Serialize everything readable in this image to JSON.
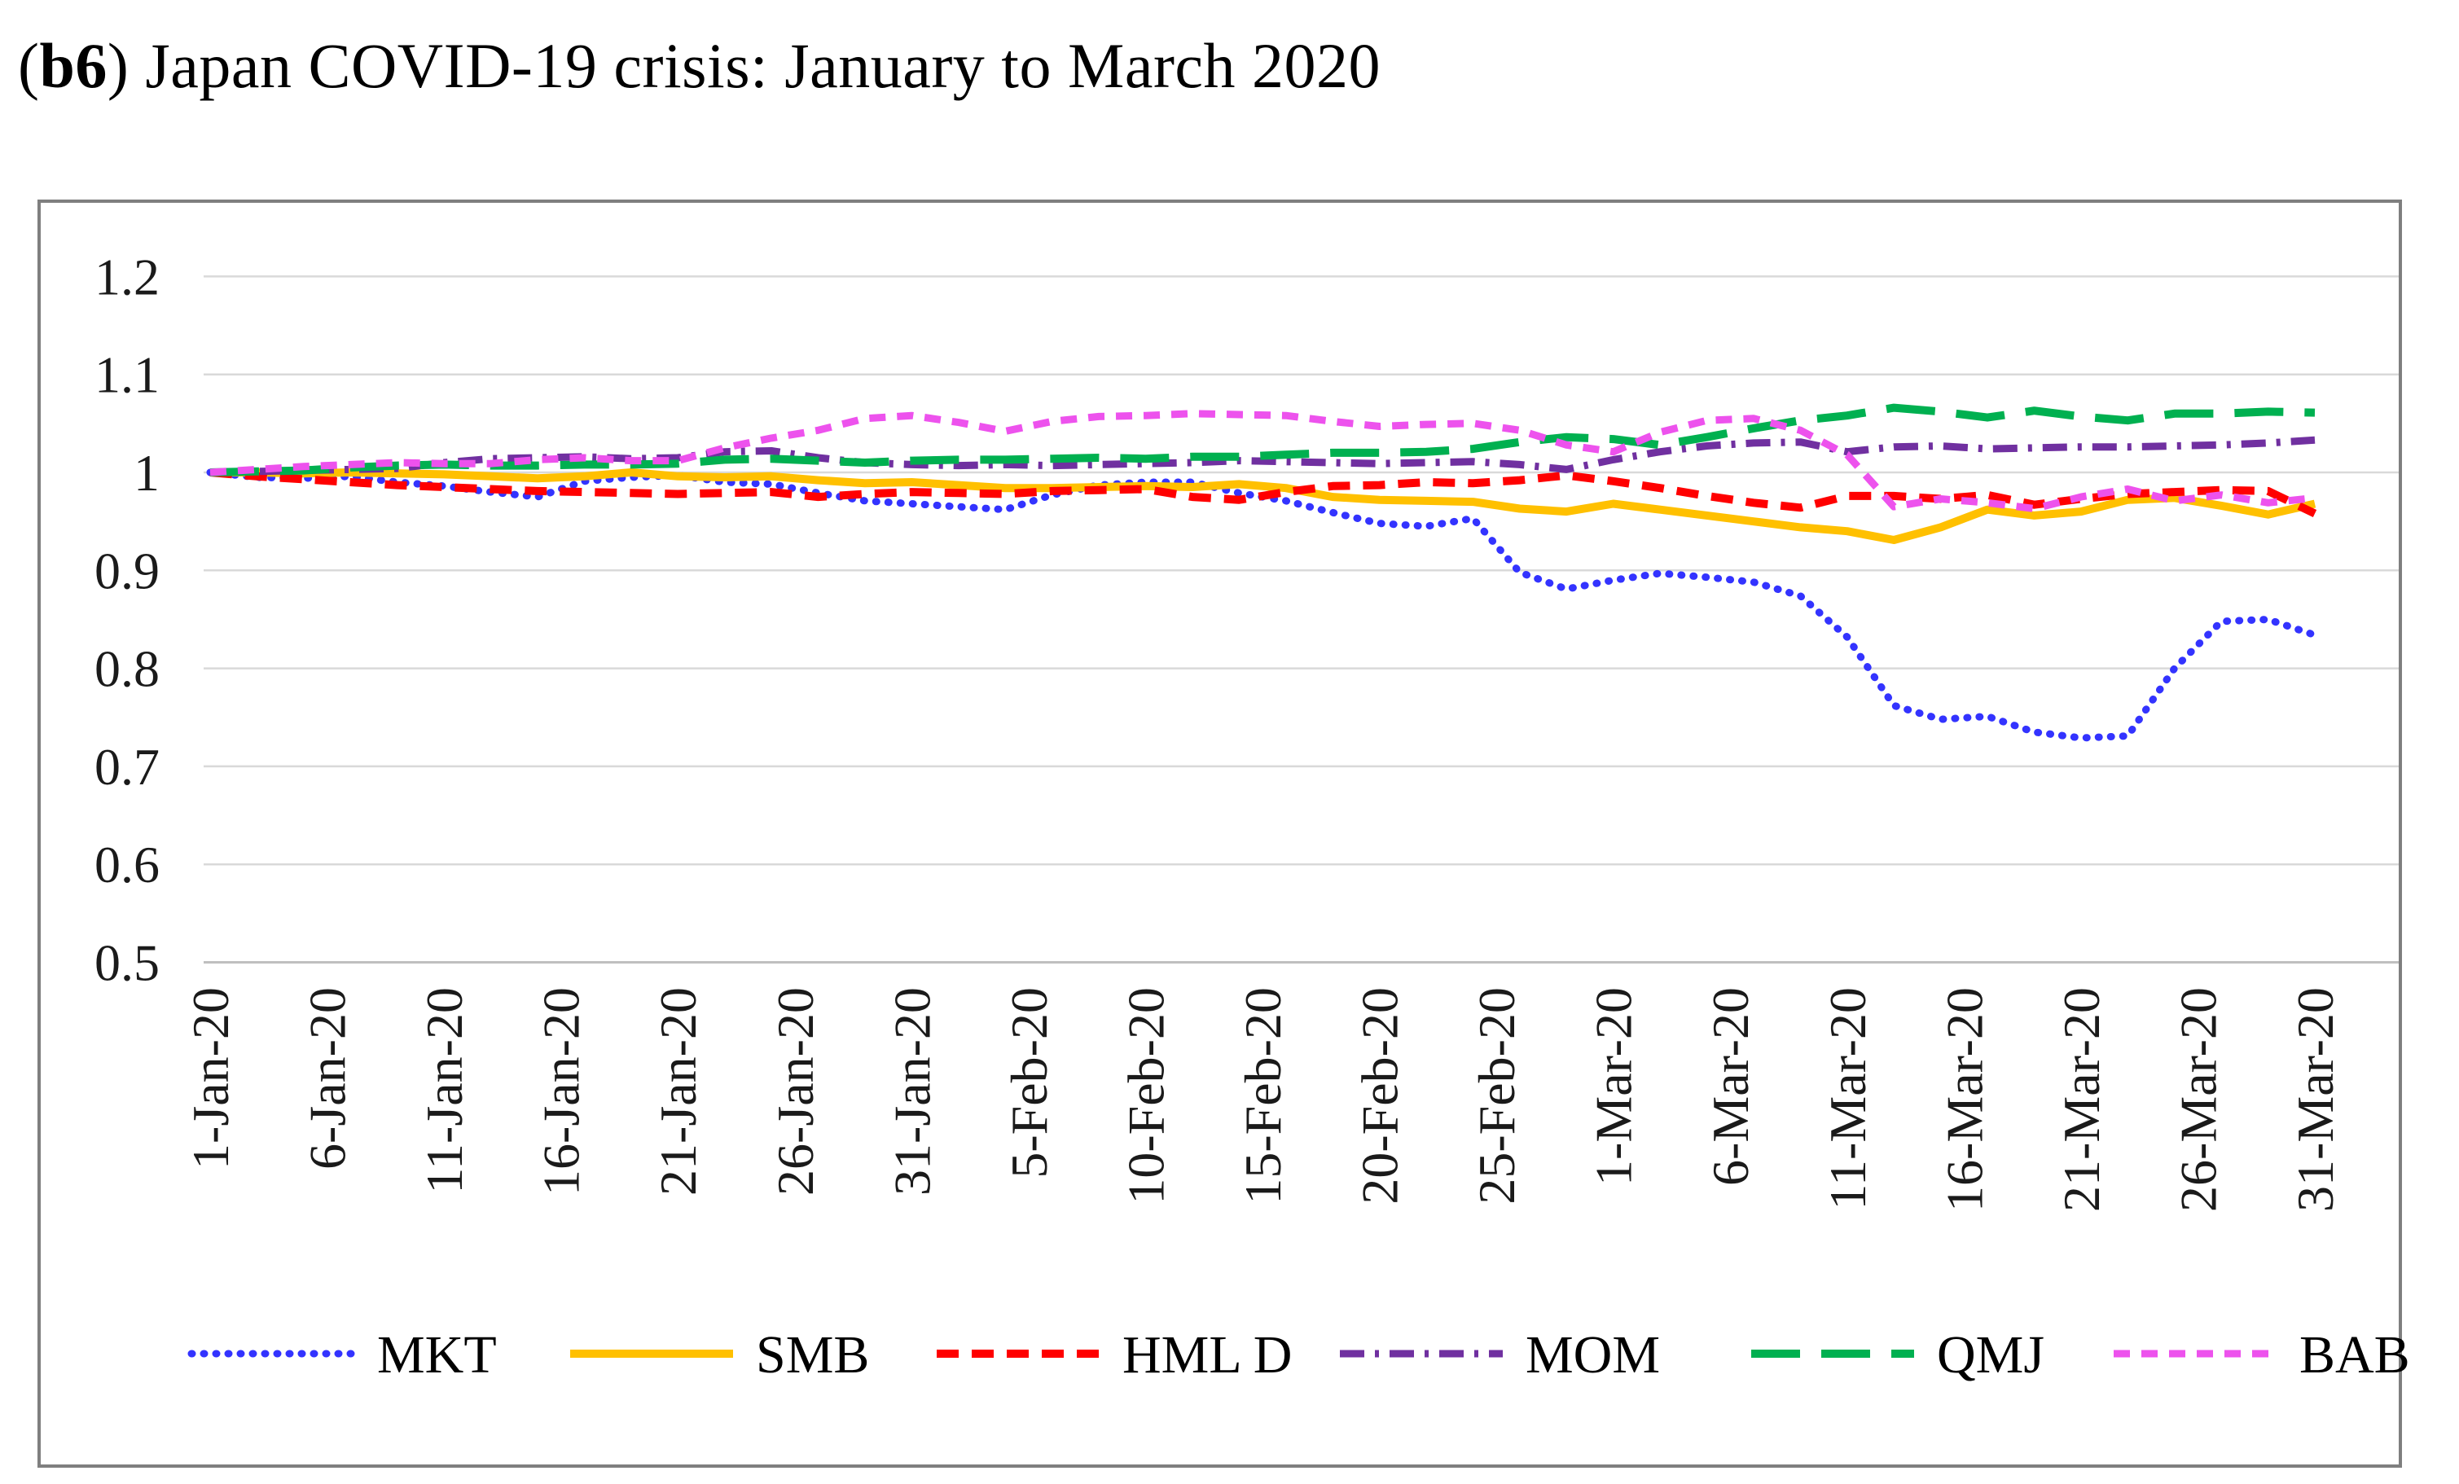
{
  "title": {
    "open": "(",
    "code": "b6",
    "rest": ") Japan COVID-19 crisis: January to March 2020"
  },
  "chart_data": {
    "type": "line",
    "title": "(b6) Japan COVID-19 crisis: January to March 2020",
    "xlabel": "",
    "ylabel": "",
    "ylim": [
      0.5,
      1.2
    ],
    "y_ticks": [
      1.2,
      1.1,
      1,
      0.9,
      0.8,
      0.7,
      0.6,
      0.5
    ],
    "y_tick_labels": [
      "1.2",
      "1.1",
      "1",
      "0.9",
      "0.8",
      "0.7",
      "0.6",
      "0.5"
    ],
    "grid": "horizontal",
    "legend_position": "bottom",
    "x_unit": "days since 1-Jan-2020",
    "x_tick_days": [
      0,
      5,
      10,
      15,
      20,
      25,
      30,
      35,
      40,
      45,
      50,
      55,
      60,
      65,
      70,
      75,
      80,
      85,
      90
    ],
    "x_tick_labels": [
      "1-Jan-20",
      "6-Jan-20",
      "11-Jan-20",
      "16-Jan-20",
      "21-Jan-20",
      "26-Jan-20",
      "31-Jan-20",
      "5-Feb-20",
      "10-Feb-20",
      "15-Feb-20",
      "20-Feb-20",
      "25-Feb-20",
      "1-Mar-20",
      "6-Mar-20",
      "11-Mar-20",
      "16-Mar-20",
      "21-Mar-20",
      "26-Mar-20",
      "31-Mar-20"
    ],
    "sample_days": [
      0,
      2,
      4,
      6,
      8,
      10,
      12,
      14,
      16,
      18,
      20,
      22,
      24,
      26,
      28,
      30,
      32,
      34,
      36,
      38,
      40,
      42,
      44,
      46,
      48,
      50,
      52,
      54,
      56,
      58,
      60,
      62,
      64,
      66,
      68,
      70,
      72,
      74,
      76,
      78,
      80,
      82,
      84,
      86,
      88,
      90
    ],
    "series": [
      {
        "name": "MKT",
        "color": "#3333FF",
        "line_style": "dotted",
        "values": [
          1.0,
          0.995,
          0.994,
          0.996,
          0.99,
          0.986,
          0.98,
          0.975,
          0.991,
          0.995,
          0.997,
          0.99,
          0.988,
          0.979,
          0.971,
          0.968,
          0.965,
          0.962,
          0.977,
          0.987,
          0.99,
          0.99,
          0.979,
          0.971,
          0.959,
          0.948,
          0.945,
          0.953,
          0.898,
          0.881,
          0.89,
          0.897,
          0.893,
          0.888,
          0.874,
          0.832,
          0.762,
          0.748,
          0.751,
          0.735,
          0.729,
          0.731,
          0.8,
          0.848,
          0.85,
          0.834
        ]
      },
      {
        "name": "SMB",
        "color": "#FFC000",
        "line_style": "solid",
        "values": [
          1.0,
          1.0,
          0.999,
          1.0,
          0.999,
          0.998,
          0.996,
          0.994,
          0.996,
          1.0,
          0.996,
          0.995,
          0.996,
          0.992,
          0.989,
          0.99,
          0.987,
          0.984,
          0.984,
          0.985,
          0.986,
          0.985,
          0.988,
          0.984,
          0.975,
          0.972,
          0.971,
          0.97,
          0.963,
          0.96,
          0.968,
          0.962,
          0.956,
          0.95,
          0.944,
          0.94,
          0.931,
          0.944,
          0.962,
          0.956,
          0.96,
          0.972,
          0.974,
          0.966,
          0.957,
          0.968
        ]
      },
      {
        "name": "HML D",
        "color": "#FF0000",
        "line_style": "dash",
        "values": [
          1.0,
          0.996,
          0.993,
          0.99,
          0.987,
          0.985,
          0.983,
          0.981,
          0.98,
          0.979,
          0.978,
          0.979,
          0.98,
          0.975,
          0.978,
          0.98,
          0.979,
          0.978,
          0.981,
          0.982,
          0.983,
          0.975,
          0.972,
          0.98,
          0.986,
          0.987,
          0.99,
          0.989,
          0.992,
          0.997,
          0.991,
          0.984,
          0.976,
          0.969,
          0.964,
          0.976,
          0.976,
          0.973,
          0.977,
          0.967,
          0.973,
          0.978,
          0.98,
          0.982,
          0.981,
          0.958
        ]
      },
      {
        "name": "MOM",
        "color": "#7030A0",
        "line_style": "dash-dot",
        "values": [
          1.0,
          1.001,
          1.002,
          1.003,
          1.004,
          1.01,
          1.014,
          1.015,
          1.016,
          1.014,
          1.015,
          1.021,
          1.022,
          1.015,
          1.01,
          1.008,
          1.007,
          1.008,
          1.007,
          1.008,
          1.009,
          1.01,
          1.012,
          1.011,
          1.01,
          1.009,
          1.01,
          1.011,
          1.008,
          1.003,
          1.013,
          1.021,
          1.027,
          1.03,
          1.031,
          1.021,
          1.026,
          1.027,
          1.024,
          1.025,
          1.026,
          1.026,
          1.027,
          1.028,
          1.03,
          1.033
        ]
      },
      {
        "name": "QMJ",
        "color": "#00B050",
        "line_style": "long-dash",
        "values": [
          1.0,
          1.001,
          1.002,
          1.005,
          1.007,
          1.008,
          1.007,
          1.007,
          1.008,
          1.008,
          1.009,
          1.013,
          1.014,
          1.012,
          1.01,
          1.012,
          1.013,
          1.013,
          1.014,
          1.015,
          1.014,
          1.016,
          1.016,
          1.018,
          1.02,
          1.02,
          1.021,
          1.024,
          1.031,
          1.036,
          1.034,
          1.028,
          1.036,
          1.045,
          1.053,
          1.058,
          1.066,
          1.062,
          1.056,
          1.063,
          1.057,
          1.053,
          1.06,
          1.06,
          1.062,
          1.061
        ]
      },
      {
        "name": "BAB",
        "color": "#ED52ED",
        "line_style": "short-dash",
        "values": [
          1.0,
          1.003,
          1.006,
          1.008,
          1.01,
          1.009,
          1.009,
          1.013,
          1.015,
          1.012,
          1.012,
          1.025,
          1.035,
          1.043,
          1.055,
          1.058,
          1.051,
          1.042,
          1.052,
          1.057,
          1.058,
          1.06,
          1.059,
          1.058,
          1.052,
          1.047,
          1.049,
          1.05,
          1.043,
          1.028,
          1.021,
          1.041,
          1.053,
          1.055,
          1.043,
          1.018,
          0.965,
          0.973,
          0.969,
          0.963,
          0.975,
          0.983,
          0.971,
          0.977,
          0.969,
          0.974
        ]
      }
    ],
    "colors": {
      "grid": "#D9D9D9",
      "axis": "#BFBFBF",
      "frame": "#7F7F7F",
      "text": "#1A1A1A"
    }
  }
}
